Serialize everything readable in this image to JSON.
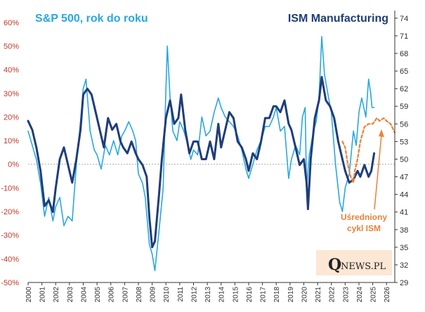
{
  "chart_data": {
    "type": "line",
    "title_left": "S&P 500, rok do roku",
    "title_right": "ISM Manufacturing",
    "x_range": [
      2000,
      2026.6
    ],
    "x_ticks": [
      "2000",
      "2001",
      "2002",
      "2003",
      "2004",
      "2005",
      "2006",
      "2007",
      "2008",
      "2009",
      "2010",
      "2011",
      "2012",
      "2013",
      "2014",
      "2015",
      "2016",
      "2017",
      "2018",
      "2019",
      "2020",
      "2021",
      "2022",
      "2023",
      "2024",
      "2025",
      "2026"
    ],
    "y_left": {
      "range": [
        -50,
        65
      ],
      "ticks": [
        "-50%",
        "-40%",
        "-30%",
        "-20%",
        "-10%",
        "0%",
        "10%",
        "20%",
        "30%",
        "40%",
        "50%",
        "60%"
      ],
      "values": [
        -50,
        -40,
        -30,
        -20,
        -10,
        0,
        10,
        20,
        30,
        40,
        50,
        60
      ]
    },
    "y_right": {
      "range": [
        29,
        75.3
      ],
      "ticks": [
        "29",
        "32",
        "35",
        "38",
        "41",
        "44",
        "47",
        "50",
        "53",
        "56",
        "59",
        "62",
        "65",
        "68",
        "71",
        "74"
      ],
      "values": [
        29,
        32,
        35,
        38,
        41,
        44,
        47,
        50,
        53,
        56,
        59,
        62,
        65,
        68,
        71,
        74
      ]
    },
    "colors": {
      "sp500": "#2aa7e1",
      "ism": "#1f3d7a",
      "cycle": "#e8823a",
      "zero_line": "#aaaaaa",
      "left_tick": "#c0392b"
    },
    "series": [
      {
        "name": "S&P 500 r/r",
        "axis": "left",
        "points": [
          [
            2000,
            14
          ],
          [
            2000.3,
            8
          ],
          [
            2000.6,
            2
          ],
          [
            2000.9,
            -8
          ],
          [
            2001.2,
            -22
          ],
          [
            2001.5,
            -14
          ],
          [
            2001.8,
            -24
          ],
          [
            2002.0,
            -18
          ],
          [
            2002.3,
            -14
          ],
          [
            2002.6,
            -26
          ],
          [
            2002.9,
            -22
          ],
          [
            2003.2,
            -24
          ],
          [
            2003.5,
            0
          ],
          [
            2003.8,
            18
          ],
          [
            2004.0,
            32
          ],
          [
            2004.2,
            36
          ],
          [
            2004.5,
            14
          ],
          [
            2004.8,
            6
          ],
          [
            2005.0,
            4
          ],
          [
            2005.3,
            -2
          ],
          [
            2005.6,
            8
          ],
          [
            2005.9,
            4
          ],
          [
            2006.2,
            10
          ],
          [
            2006.5,
            4
          ],
          [
            2006.8,
            12
          ],
          [
            2007.0,
            14
          ],
          [
            2007.3,
            18
          ],
          [
            2007.6,
            14
          ],
          [
            2007.8,
            10
          ],
          [
            2008.0,
            -4
          ],
          [
            2008.3,
            -8
          ],
          [
            2008.5,
            -14
          ],
          [
            2008.8,
            -34
          ],
          [
            2009.0,
            -38
          ],
          [
            2009.2,
            -45
          ],
          [
            2009.5,
            -28
          ],
          [
            2009.8,
            -10
          ],
          [
            2010.0,
            32
          ],
          [
            2010.1,
            50
          ],
          [
            2010.3,
            28
          ],
          [
            2010.5,
            14
          ],
          [
            2010.8,
            10
          ],
          [
            2011.0,
            18
          ],
          [
            2011.3,
            14
          ],
          [
            2011.6,
            8
          ],
          [
            2011.8,
            2
          ],
          [
            2012.0,
            6
          ],
          [
            2012.3,
            4
          ],
          [
            2012.6,
            20
          ],
          [
            2012.9,
            12
          ],
          [
            2013.2,
            14
          ],
          [
            2013.5,
            22
          ],
          [
            2013.8,
            28
          ],
          [
            2014.0,
            24
          ],
          [
            2014.3,
            20
          ],
          [
            2014.6,
            18
          ],
          [
            2014.9,
            16
          ],
          [
            2015.2,
            12
          ],
          [
            2015.5,
            6
          ],
          [
            2015.8,
            -2
          ],
          [
            2016.0,
            -6
          ],
          [
            2016.3,
            0
          ],
          [
            2016.6,
            6
          ],
          [
            2016.9,
            10
          ],
          [
            2017.2,
            16
          ],
          [
            2017.5,
            16
          ],
          [
            2017.8,
            20
          ],
          [
            2018.0,
            24
          ],
          [
            2018.3,
            14
          ],
          [
            2018.6,
            16
          ],
          [
            2018.9,
            -6
          ],
          [
            2019.1,
            2
          ],
          [
            2019.4,
            8
          ],
          [
            2019.7,
            4
          ],
          [
            2019.9,
            20
          ],
          [
            2020.1,
            24
          ],
          [
            2020.2,
            -10
          ],
          [
            2020.4,
            4
          ],
          [
            2020.7,
            14
          ],
          [
            2020.9,
            18
          ],
          [
            2021.1,
            28
          ],
          [
            2021.3,
            54
          ],
          [
            2021.5,
            38
          ],
          [
            2021.8,
            28
          ],
          [
            2022.0,
            22
          ],
          [
            2022.3,
            0
          ],
          [
            2022.6,
            -16
          ],
          [
            2022.8,
            -20
          ],
          [
            2023.0,
            -10
          ],
          [
            2023.3,
            -4
          ],
          [
            2023.6,
            14
          ],
          [
            2023.8,
            8
          ],
          [
            2024.0,
            22
          ],
          [
            2024.2,
            28
          ],
          [
            2024.5,
            20
          ],
          [
            2024.7,
            36
          ],
          [
            2024.85,
            30
          ],
          [
            2024.95,
            24
          ],
          [
            2025.1,
            24
          ]
        ]
      },
      {
        "name": "ISM Manufacturing",
        "axis": "right",
        "points": [
          [
            2000,
            56.5
          ],
          [
            2000.3,
            55
          ],
          [
            2000.6,
            52
          ],
          [
            2000.9,
            48
          ],
          [
            2001.2,
            42
          ],
          [
            2001.5,
            43
          ],
          [
            2001.8,
            41
          ],
          [
            2002.0,
            45
          ],
          [
            2002.3,
            50
          ],
          [
            2002.6,
            52
          ],
          [
            2002.9,
            49
          ],
          [
            2003.2,
            46
          ],
          [
            2003.5,
            50
          ],
          [
            2003.8,
            55
          ],
          [
            2004.0,
            61
          ],
          [
            2004.3,
            62
          ],
          [
            2004.6,
            61
          ],
          [
            2004.9,
            58
          ],
          [
            2005.2,
            55
          ],
          [
            2005.5,
            52
          ],
          [
            2005.8,
            57
          ],
          [
            2006.1,
            55
          ],
          [
            2006.4,
            56
          ],
          [
            2006.7,
            53
          ],
          [
            2006.9,
            52
          ],
          [
            2007.2,
            51
          ],
          [
            2007.5,
            53
          ],
          [
            2007.8,
            51
          ],
          [
            2008.0,
            50
          ],
          [
            2008.3,
            49
          ],
          [
            2008.6,
            47
          ],
          [
            2008.8,
            40
          ],
          [
            2009.0,
            35
          ],
          [
            2009.2,
            36
          ],
          [
            2009.5,
            44
          ],
          [
            2009.7,
            50
          ],
          [
            2010.0,
            57
          ],
          [
            2010.3,
            60
          ],
          [
            2010.6,
            56
          ],
          [
            2010.9,
            57
          ],
          [
            2011.1,
            61
          ],
          [
            2011.4,
            55
          ],
          [
            2011.7,
            51
          ],
          [
            2012.0,
            53
          ],
          [
            2012.3,
            53
          ],
          [
            2012.6,
            50
          ],
          [
            2012.9,
            50
          ],
          [
            2013.2,
            53
          ],
          [
            2013.5,
            50
          ],
          [
            2013.8,
            56
          ],
          [
            2014.0,
            52
          ],
          [
            2014.3,
            55
          ],
          [
            2014.6,
            58
          ],
          [
            2014.9,
            57
          ],
          [
            2015.2,
            53
          ],
          [
            2015.5,
            52
          ],
          [
            2015.8,
            50
          ],
          [
            2016.0,
            48
          ],
          [
            2016.3,
            51
          ],
          [
            2016.6,
            50
          ],
          [
            2016.9,
            53
          ],
          [
            2017.2,
            57
          ],
          [
            2017.5,
            57
          ],
          [
            2017.8,
            59
          ],
          [
            2018.0,
            59
          ],
          [
            2018.3,
            58
          ],
          [
            2018.6,
            60
          ],
          [
            2018.9,
            56
          ],
          [
            2019.1,
            55
          ],
          [
            2019.4,
            52
          ],
          [
            2019.7,
            49
          ],
          [
            2020.0,
            50
          ],
          [
            2020.2,
            46
          ],
          [
            2020.3,
            41.5
          ],
          [
            2020.5,
            50
          ],
          [
            2020.8,
            57
          ],
          [
            2021.1,
            60
          ],
          [
            2021.3,
            64
          ],
          [
            2021.6,
            60
          ],
          [
            2021.9,
            59
          ],
          [
            2022.2,
            57
          ],
          [
            2022.5,
            53
          ],
          [
            2022.8,
            50
          ],
          [
            2023.0,
            48
          ],
          [
            2023.3,
            46
          ],
          [
            2023.6,
            46.5
          ],
          [
            2023.9,
            48
          ],
          [
            2024.1,
            47
          ],
          [
            2024.4,
            49
          ],
          [
            2024.7,
            47
          ],
          [
            2024.9,
            48
          ],
          [
            2025.1,
            51
          ]
        ]
      },
      {
        "name": "Uśredniony cykl ISM",
        "axis": "right",
        "dashed": true,
        "points": [
          [
            2022.8,
            53
          ],
          [
            2023.0,
            52
          ],
          [
            2023.2,
            49
          ],
          [
            2023.4,
            47
          ],
          [
            2023.6,
            46
          ],
          [
            2023.7,
            48
          ],
          [
            2023.9,
            50
          ],
          [
            2024.1,
            53
          ],
          [
            2024.4,
            55.5
          ],
          [
            2024.7,
            56
          ],
          [
            2025.0,
            56
          ],
          [
            2025.3,
            57
          ],
          [
            2025.5,
            56.5
          ],
          [
            2025.8,
            57
          ],
          [
            2026.0,
            56.5
          ],
          [
            2026.3,
            56
          ],
          [
            2026.6,
            54.5
          ]
        ]
      }
    ],
    "annotation": {
      "text_line1": "Uśredniony",
      "text_line2": "cykl ISM"
    },
    "logo": {
      "q": "Q",
      "rest": "NEWS.PL"
    }
  }
}
